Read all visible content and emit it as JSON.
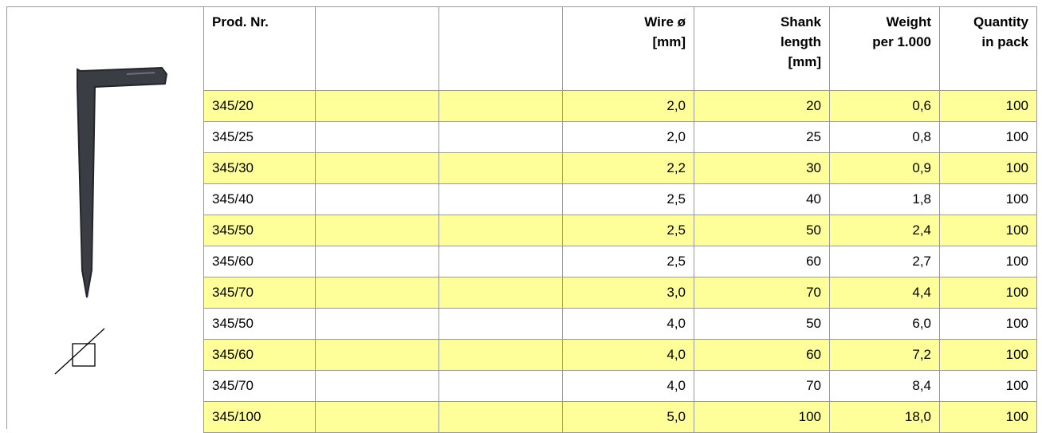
{
  "table": {
    "headers": {
      "prod": [
        "Prod. Nr."
      ],
      "wire": [
        "Wire ø",
        "[mm]"
      ],
      "shank": [
        "Shank",
        "length",
        "[mm]"
      ],
      "weight": [
        "Weight",
        "per 1.000"
      ],
      "qty": [
        "Quantity",
        "in pack"
      ]
    },
    "rows": [
      {
        "prod": "345/20",
        "wire": "2,0",
        "shank": "20",
        "weight": "0,6",
        "qty": "100"
      },
      {
        "prod": "345/25",
        "wire": "2,0",
        "shank": "25",
        "weight": "0,8",
        "qty": "100"
      },
      {
        "prod": "345/30",
        "wire": "2,2",
        "shank": "30",
        "weight": "0,9",
        "qty": "100"
      },
      {
        "prod": "345/40",
        "wire": "2,5",
        "shank": "40",
        "weight": "1,8",
        "qty": "100"
      },
      {
        "prod": "345/50",
        "wire": "2,5",
        "shank": "50",
        "weight": "2,4",
        "qty": "100"
      },
      {
        "prod": "345/60",
        "wire": "2,5",
        "shank": "60",
        "weight": "2,7",
        "qty": "100"
      },
      {
        "prod": "345/70",
        "wire": "3,0",
        "shank": "70",
        "weight": "4,4",
        "qty": "100"
      },
      {
        "prod": "345/50",
        "wire": "4,0",
        "shank": "50",
        "weight": "6,0",
        "qty": "100"
      },
      {
        "prod": "345/60",
        "wire": "4,0",
        "shank": "60",
        "weight": "7,2",
        "qty": "100"
      },
      {
        "prod": "345/70",
        "wire": "4,0",
        "shank": "70",
        "weight": "8,4",
        "qty": "100"
      },
      {
        "prod": "345/100",
        "wire": "5,0",
        "shank": "100",
        "weight": "18,0",
        "qty": "100"
      }
    ]
  }
}
